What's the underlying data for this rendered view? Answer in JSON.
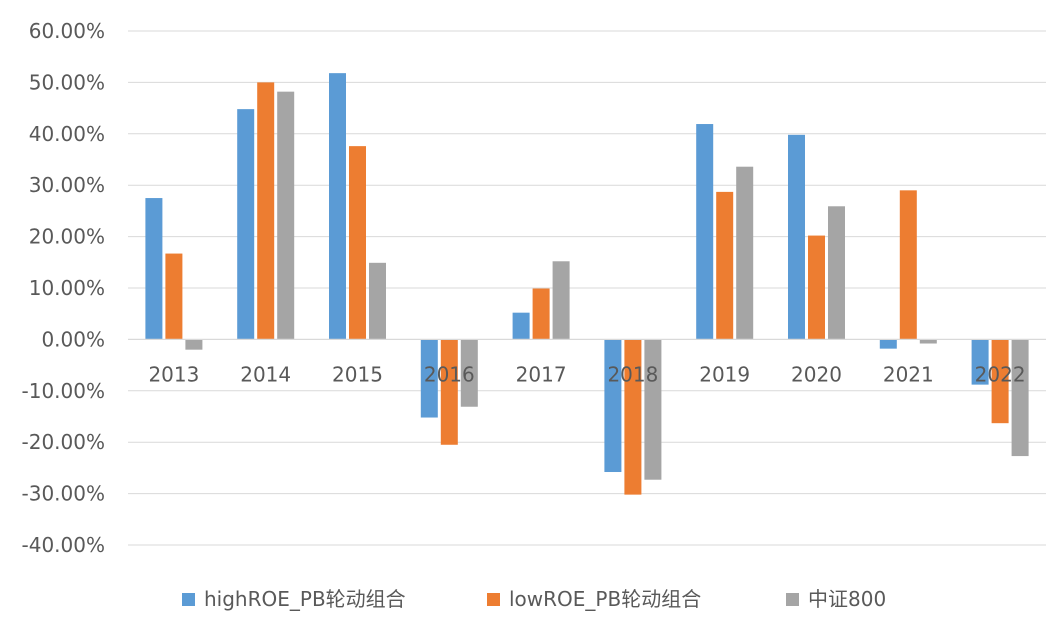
{
  "chart_data": {
    "type": "bar",
    "categories": [
      "2013",
      "2014",
      "2015",
      "2016",
      "2017",
      "2018",
      "2019",
      "2020",
      "2021",
      "2022"
    ],
    "series": [
      {
        "name": "highROE_PB轮动组合",
        "color": "#5B9BD5",
        "values": [
          0.275,
          0.448,
          0.518,
          -0.152,
          0.052,
          -0.258,
          0.419,
          0.398,
          -0.018,
          -0.088
        ]
      },
      {
        "name": "lowROE_PB轮动组合",
        "color": "#ED7D31",
        "values": [
          0.167,
          0.5,
          0.376,
          -0.205,
          0.099,
          -0.302,
          0.287,
          0.202,
          0.29,
          -0.163
        ]
      },
      {
        "name": "中证800",
        "color": "#A5A5A5",
        "values": [
          -0.02,
          0.482,
          0.149,
          -0.131,
          0.152,
          -0.273,
          0.336,
          0.259,
          -0.008,
          -0.227
        ]
      }
    ],
    "ylim": [
      -0.4,
      0.6
    ],
    "yticks": [
      0.6,
      0.5,
      0.4,
      0.3,
      0.2,
      0.1,
      0.0,
      -0.1,
      -0.2,
      -0.3,
      -0.4
    ],
    "ytick_labels": [
      "60.00%",
      "50.00%",
      "40.00%",
      "30.00%",
      "20.00%",
      "10.00%",
      "0.00%",
      "-10.00%",
      "-20.00%",
      "-30.00%",
      "-40.00%"
    ],
    "grid": true,
    "legend_position": "bottom"
  }
}
